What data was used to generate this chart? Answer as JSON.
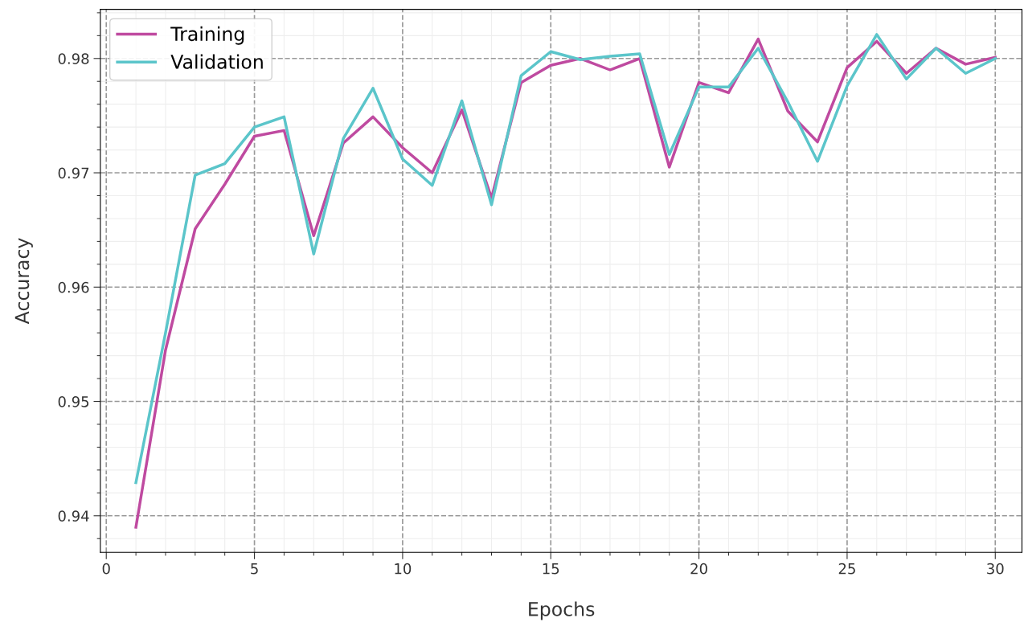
{
  "chart_data": {
    "type": "line",
    "xlabel": "Epochs",
    "ylabel": "Accuracy",
    "x": [
      1,
      2,
      3,
      4,
      5,
      6,
      7,
      8,
      9,
      10,
      11,
      12,
      13,
      14,
      15,
      16,
      17,
      18,
      19,
      20,
      21,
      22,
      23,
      24,
      25,
      26,
      27,
      28,
      29,
      30
    ],
    "series": [
      {
        "name": "Training",
        "color": "#bf4aa0",
        "values": [
          0.939,
          0.9545,
          0.9651,
          0.969,
          0.9732,
          0.9737,
          0.9645,
          0.9726,
          0.9749,
          0.9722,
          0.97,
          0.9755,
          0.9678,
          0.9779,
          0.9794,
          0.98,
          0.979,
          0.98,
          0.9705,
          0.9779,
          0.977,
          0.9817,
          0.9754,
          0.9727,
          0.9792,
          0.9815,
          0.9787,
          0.9809,
          0.9795,
          0.9801
        ]
      },
      {
        "name": "Validation",
        "color": "#5bc5ca",
        "values": [
          0.9429,
          0.956,
          0.9698,
          0.9708,
          0.974,
          0.9749,
          0.9629,
          0.973,
          0.9774,
          0.9712,
          0.9689,
          0.9763,
          0.9672,
          0.9785,
          0.9806,
          0.9799,
          0.9802,
          0.9804,
          0.9716,
          0.9775,
          0.9775,
          0.9809,
          0.9762,
          0.971,
          0.9776,
          0.9821,
          0.9782,
          0.9809,
          0.9787,
          0.98
        ]
      }
    ],
    "xlim": [
      -0.2,
      30.9
    ],
    "xticks": [
      0,
      5,
      10,
      15,
      20,
      25,
      30
    ],
    "ylim": [
      0.9368,
      0.9843
    ],
    "yticks": [
      0.94,
      0.95,
      0.96,
      0.97,
      0.98
    ],
    "grid": true,
    "legend": "top left",
    "marker": "none",
    "line_style": "solid"
  }
}
